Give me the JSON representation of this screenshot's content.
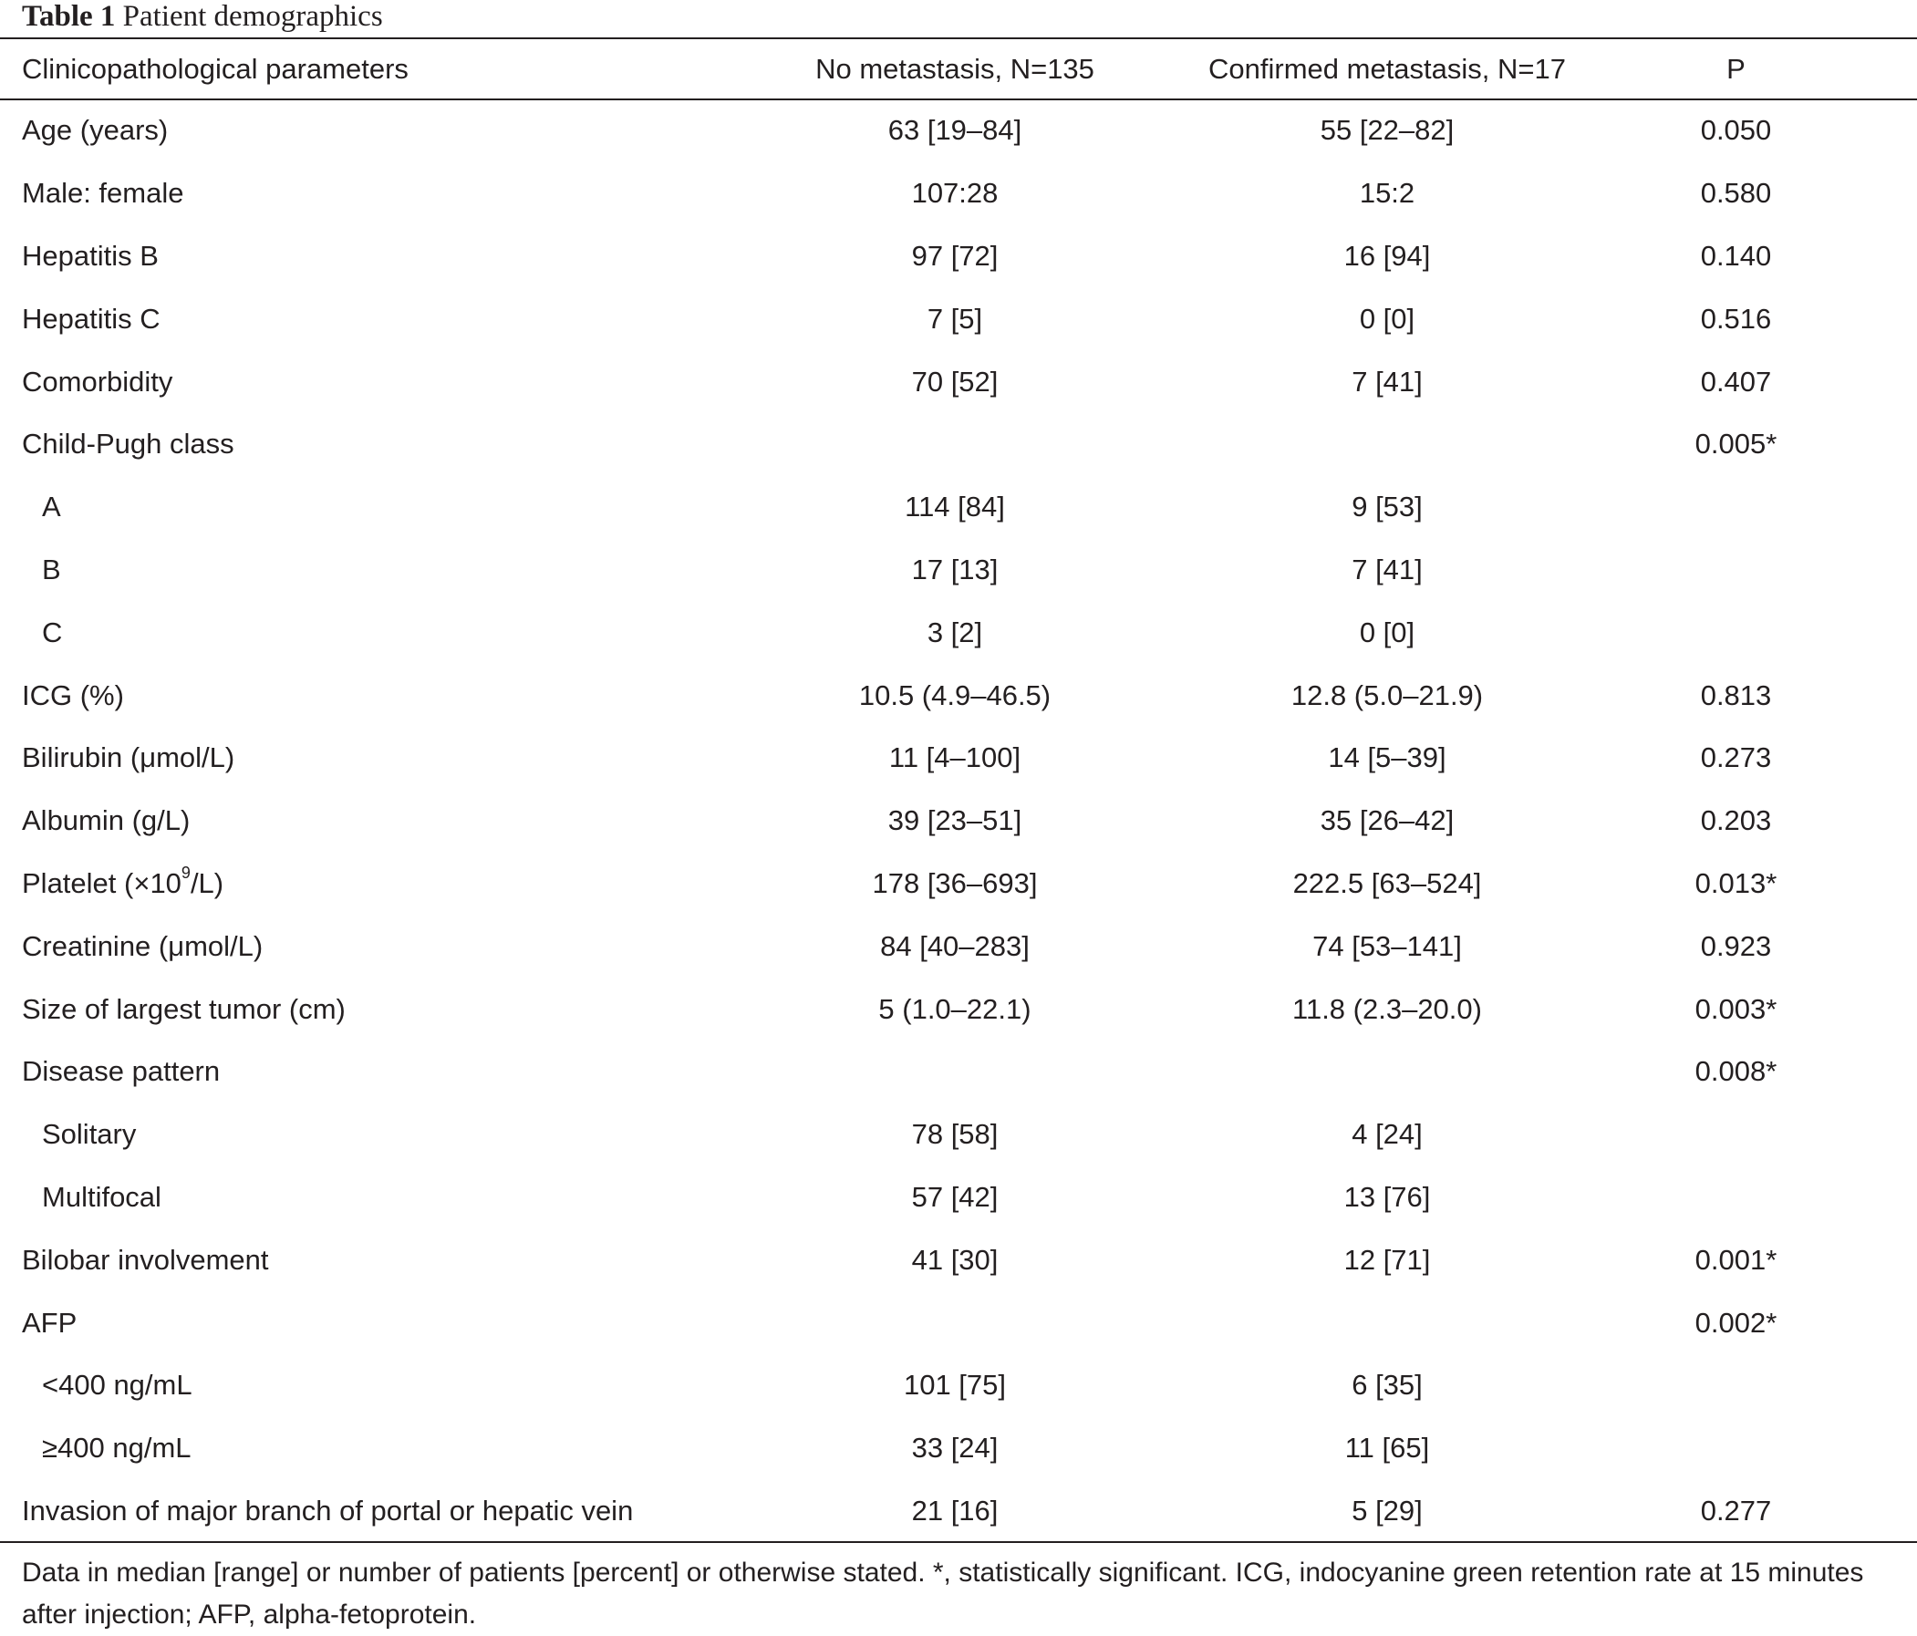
{
  "table": {
    "caption_label": "Table 1",
    "caption_title": "Patient demographics",
    "columns": [
      "Clinicopathological parameters",
      "No metastasis, N=135",
      "Confirmed metastasis, N=17",
      "P"
    ],
    "rows": [
      {
        "label": "Age (years)",
        "no_met": "63 [19–84]",
        "met": "55 [22–82]",
        "p": "0.050",
        "indent": false
      },
      {
        "label": "Male: female",
        "no_met": "107:28",
        "met": "15:2",
        "p": "0.580",
        "indent": false
      },
      {
        "label": "Hepatitis B",
        "no_met": "97 [72]",
        "met": "16 [94]",
        "p": "0.140",
        "indent": false
      },
      {
        "label": "Hepatitis C",
        "no_met": "7 [5]",
        "met": "0 [0]",
        "p": "0.516",
        "indent": false
      },
      {
        "label": "Comorbidity",
        "no_met": "70 [52]",
        "met": "7 [41]",
        "p": "0.407",
        "indent": false
      },
      {
        "label": "Child-Pugh class",
        "no_met": "",
        "met": "",
        "p": "0.005*",
        "indent": false
      },
      {
        "label": "A",
        "no_met": "114 [84]",
        "met": "9 [53]",
        "p": "",
        "indent": true
      },
      {
        "label": "B",
        "no_met": "17 [13]",
        "met": "7 [41]",
        "p": "",
        "indent": true
      },
      {
        "label": "C",
        "no_met": "3 [2]",
        "met": "0 [0]",
        "p": "",
        "indent": true
      },
      {
        "label": "ICG (%)",
        "no_met": "10.5 (4.9–46.5)",
        "met": "12.8 (5.0–21.9)",
        "p": "0.813",
        "indent": false
      },
      {
        "label": "Bilirubin (μmol/L)",
        "no_met": "11 [4–100]",
        "met": "14 [5–39]",
        "p": "0.273",
        "indent": false
      },
      {
        "label": "Albumin (g/L)",
        "no_met": "39 [23–51]",
        "met": "35 [26–42]",
        "p": "0.203",
        "indent": false
      },
      {
        "label": "Platelet (×10",
        "label_sup": "9",
        "label_suffix": "/L)",
        "no_met": "178 [36–693]",
        "met": "222.5 [63–524]",
        "p": "0.013*",
        "indent": false
      },
      {
        "label": "Creatinine (μmol/L)",
        "no_met": "84 [40–283]",
        "met": "74 [53–141]",
        "p": "0.923",
        "indent": false
      },
      {
        "label": "Size of largest tumor (cm)",
        "no_met": "5 (1.0–22.1)",
        "met": "11.8 (2.3–20.0)",
        "p": "0.003*",
        "indent": false
      },
      {
        "label": "Disease pattern",
        "no_met": "",
        "met": "",
        "p": "0.008*",
        "indent": false
      },
      {
        "label": "Solitary",
        "no_met": "78 [58]",
        "met": "4 [24]",
        "p": "",
        "indent": true
      },
      {
        "label": "Multifocal",
        "no_met": "57 [42]",
        "met": "13 [76]",
        "p": "",
        "indent": true
      },
      {
        "label": "Bilobar involvement",
        "no_met": "41 [30]",
        "met": "12 [71]",
        "p": "0.001*",
        "indent": false
      },
      {
        "label": "AFP",
        "no_met": "",
        "met": "",
        "p": "0.002*",
        "indent": false
      },
      {
        "label": "<400 ng/mL",
        "no_met": "101 [75]",
        "met": "6 [35]",
        "p": "",
        "indent": true
      },
      {
        "label": "≥400 ng/mL",
        "no_met": "33 [24]",
        "met": "11 [65]",
        "p": "",
        "indent": true
      },
      {
        "label": "Invasion of major branch of portal or hepatic vein",
        "no_met": "21 [16]",
        "met": "5 [29]",
        "p": "0.277",
        "indent": false
      }
    ],
    "footnote": "Data in median [range] or number of patients [percent] or otherwise stated. *, statistically significant. ICG, indocyanine green retention rate at 15 minutes after injection; AFP, alpha-fetoprotein."
  }
}
